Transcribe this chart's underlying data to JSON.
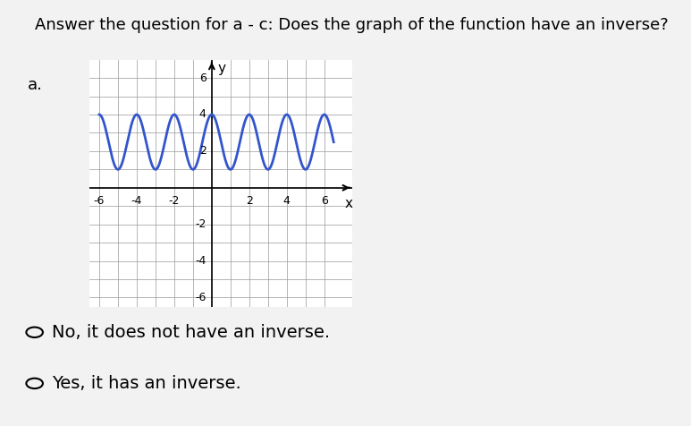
{
  "title": "Answer the question for a - c: Does the graph of the function have an inverse?",
  "label_a": "a.",
  "xlabel": "x",
  "ylabel": "y",
  "xlim": [
    -6.5,
    7.5
  ],
  "ylim": [
    -6.5,
    7.0
  ],
  "xticks": [
    -6,
    -4,
    -2,
    2,
    4,
    6
  ],
  "yticks": [
    -6,
    -4,
    -2,
    2,
    4,
    6
  ],
  "curve_color": "#3355cc",
  "curve_x_start": -6.0,
  "curve_x_end": 6.5,
  "amplitude": 1.5,
  "vertical_shift": 2.5,
  "frequency": 1.0,
  "background_color": "#f0f0f0",
  "grid_color": "#999999",
  "option1": "No, it does not have an inverse.",
  "option2": "Yes, it has an inverse.",
  "title_fontsize": 13,
  "label_fontsize": 13,
  "option_fontsize": 14
}
